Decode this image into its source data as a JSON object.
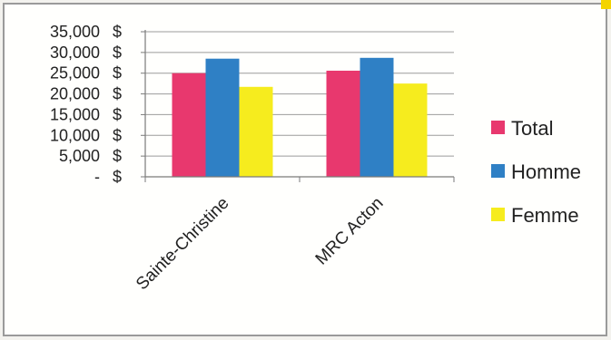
{
  "chart_data": {
    "type": "bar",
    "categories": [
      "Sainte-Christine",
      "MRC Acton"
    ],
    "series": [
      {
        "name": "Total",
        "color": "#e8386e",
        "values": [
          25000,
          25600
        ]
      },
      {
        "name": "Homme",
        "color": "#2f80c5",
        "values": [
          28500,
          28700
        ]
      },
      {
        "name": "Femme",
        "color": "#f6ec1e",
        "values": [
          21700,
          22500
        ]
      }
    ],
    "ylim": [
      0,
      35000
    ],
    "ytick_values": [
      0,
      5000,
      10000,
      15000,
      20000,
      25000,
      30000,
      35000
    ],
    "ytick_labels": [
      "-",
      "5,000",
      "10,000",
      "15,000",
      "20,000",
      "25,000",
      "30,000",
      "35,000"
    ],
    "ytick_unit": "$",
    "grid": true,
    "legend_position": "right"
  }
}
